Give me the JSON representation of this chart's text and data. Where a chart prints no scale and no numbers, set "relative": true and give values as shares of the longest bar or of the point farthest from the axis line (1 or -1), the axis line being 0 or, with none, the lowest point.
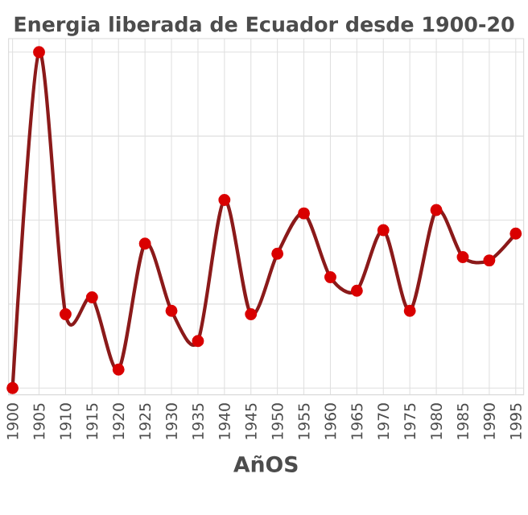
{
  "chart_data": {
    "type": "line",
    "title": "Energia liberada de Ecuador desde 1900-20",
    "xlabel": "AñOS",
    "categories": [
      "1900",
      "1905",
      "1910",
      "1915",
      "1920",
      "1925",
      "1930",
      "1935",
      "1940",
      "1945",
      "1950",
      "1955",
      "1960",
      "1965",
      "1970",
      "1975",
      "1980",
      "1985",
      "1990",
      "1995"
    ],
    "series": [
      {
        "color": "#8b1a1a",
        "values": [
          0,
          1,
          0.22,
          0.27,
          0.055,
          0.43,
          0.23,
          0.14,
          0.56,
          0.22,
          0.4,
          0.52,
          0.33,
          0.29,
          0.47,
          0.23,
          0.53,
          0.39,
          0.38,
          0.46
        ]
      }
    ],
    "relative": true,
    "grid": true,
    "marker": "circle",
    "line_style": "solid",
    "tick_labels": "x"
  }
}
